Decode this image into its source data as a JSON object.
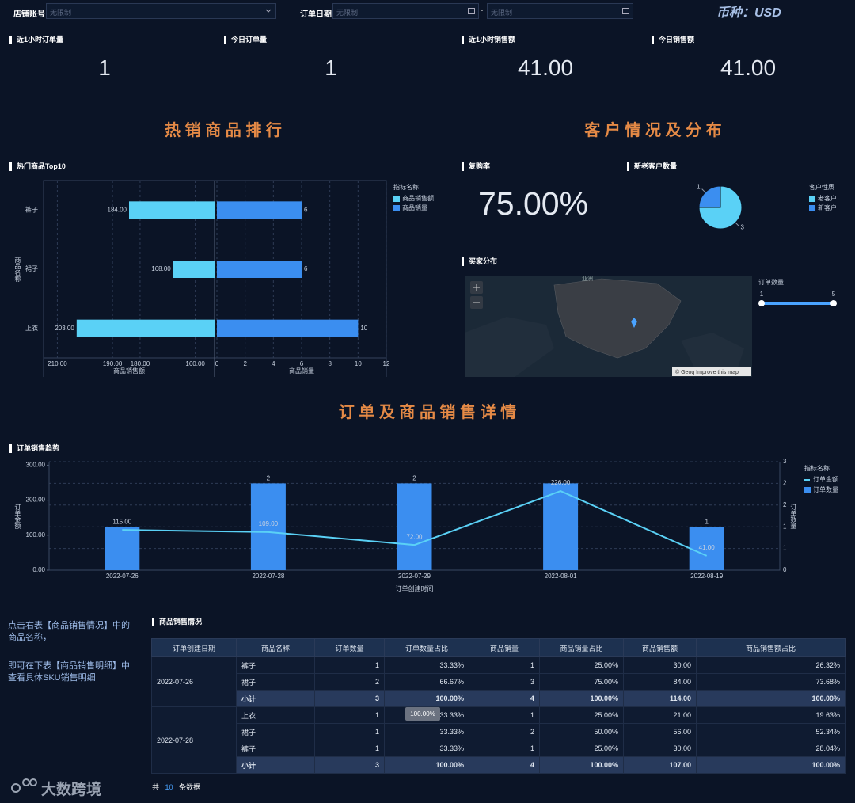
{
  "filters": {
    "store_label": "店铺账号",
    "store_value": "无限制",
    "date_label": "订单日期",
    "date_start": "无限制",
    "date_separator": "-",
    "date_end": "无限制",
    "currency": "币种：USD"
  },
  "kpis": [
    {
      "label": "近1小时订单量",
      "value": "1"
    },
    {
      "label": "今日订单量",
      "value": "1"
    },
    {
      "label": "近1小时销售额",
      "value": "41.00"
    },
    {
      "label": "今日销售额",
      "value": "41.00"
    }
  ],
  "section_titles": [
    "热 销 商 品 排 行",
    "客 户 情 况 及 分 布",
    "订 单 及 商 品 销 售 详 情"
  ],
  "repurchase": {
    "title": "复购率",
    "value": "75.00%"
  },
  "chart_data": [
    {
      "type": "butterfly_bar",
      "title": "热门商品Top10",
      "y_label": "商品名称",
      "legend_title": "指标名称",
      "grid": true,
      "categories": [
        "裤子",
        "裙子",
        "上衣"
      ],
      "series": [
        {
          "name": "商品销售额",
          "color": "#5ad1f6",
          "values": [
            184,
            168,
            203
          ],
          "value_labels": [
            "184.00",
            "168.00",
            "203.00"
          ],
          "x_label": "商品销售额",
          "xlim": [
            215,
            153
          ],
          "xticks": [
            {
              "value": 210,
              "label": "210.00"
            },
            {
              "value": 190,
              "label": "190.00"
            },
            {
              "value": 180,
              "label": "180.00"
            },
            {
              "value": 160,
              "label": "160.00"
            }
          ]
        },
        {
          "name": "商品销量",
          "color": "#3b8ef0",
          "values": [
            6,
            6,
            10
          ],
          "x_label": "商品销量",
          "xlim": [
            0,
            12
          ],
          "xticks": [
            0,
            2,
            4,
            6,
            8,
            10,
            12
          ]
        }
      ]
    },
    {
      "type": "pie",
      "title": "新老客户数量",
      "legend_title": "客户性质",
      "categories": [
        "老客户",
        "新客户"
      ],
      "values": [
        3,
        1
      ],
      "colors": [
        "#5ad1f6",
        "#3b8ef0"
      ]
    },
    {
      "type": "bar_line",
      "title": "订单销售趋势",
      "x_label": "订单创建时间",
      "y_label": "订单金额",
      "y2_label": "订单数量",
      "legend_title": "指标名称",
      "categories": [
        "2022-07-26",
        "2022-07-28",
        "2022-07-29",
        "2022-08-01",
        "2022-08-19"
      ],
      "ylim": [
        0,
        310
      ],
      "yticks": [
        {
          "value": 0,
          "label": "0.00"
        },
        {
          "value": 100,
          "label": "100.00"
        },
        {
          "value": 200,
          "label": "200.00"
        },
        {
          "value": 300,
          "label": "300.00"
        }
      ],
      "y2lim": [
        0,
        2.5
      ],
      "y2ticks": [
        0,
        {
          "value": 0.5,
          "label": "1"
        },
        1,
        {
          "value": 1.5,
          "label": "2"
        },
        2,
        {
          "value": 2.5,
          "label": "3"
        }
      ],
      "grid": true,
      "series": [
        {
          "name": "订单金额",
          "type": "line",
          "color": "#5ad1f6",
          "values": [
            115,
            109,
            72,
            226,
            41
          ],
          "value_labels": [
            "115.00",
            "109.00",
            "72.00",
            "226.00",
            "41.00"
          ]
        },
        {
          "name": "订单数量",
          "type": "bar",
          "axis": "y2",
          "color": "#3b8ef0",
          "values": [
            1,
            2,
            2,
            2,
            1
          ],
          "value_labels": [
            null,
            "2",
            "2",
            null,
            "1"
          ]
        }
      ]
    }
  ],
  "buyer_map": {
    "title": "买家分布",
    "legend_title": "订单数量",
    "range": [
      1,
      5
    ],
    "region_label": "亚洲",
    "attribution": "© Geoq Improve this map"
  },
  "hint": [
    "点击右表【商品销售情况】中的商品名称，",
    "即可在下表【商品销售明细】中查看具体SKU销售明细"
  ],
  "table": {
    "title": "商品销售情况",
    "columns": [
      "订单创建日期",
      "商品名称",
      "订单数量",
      "订单数量占比",
      "商品销量",
      "商品销量占比",
      "商品销售额",
      "商品销售额占比"
    ],
    "groups": [
      {
        "date": "2022-07-26",
        "rows": [
          [
            "裤子",
            "1",
            "33.33%",
            "1",
            "25.00%",
            "30.00",
            "26.32%"
          ],
          [
            "裙子",
            "2",
            "66.67%",
            "3",
            "75.00%",
            "84.00",
            "73.68%"
          ],
          [
            "小计",
            "3",
            "100.00%",
            "4",
            "100.00%",
            "114.00",
            "100.00%"
          ]
        ]
      },
      {
        "date": "2022-07-28",
        "rows": [
          [
            "上衣",
            "1",
            "33.33%",
            "1",
            "25.00%",
            "21.00",
            "19.63%"
          ],
          [
            "裙子",
            "1",
            "33.33%",
            "2",
            "50.00%",
            "56.00",
            "52.34%"
          ],
          [
            "裤子",
            "1",
            "33.33%",
            "1",
            "25.00%",
            "30.00",
            "28.04%"
          ],
          [
            "小计",
            "3",
            "100.00%",
            "4",
            "100.00%",
            "107.00",
            "100.00%"
          ]
        ]
      }
    ],
    "tooltip": "100.00%",
    "footer": {
      "prefix": "共",
      "count": "10",
      "suffix": "条数据"
    }
  },
  "logo": "大数跨境"
}
